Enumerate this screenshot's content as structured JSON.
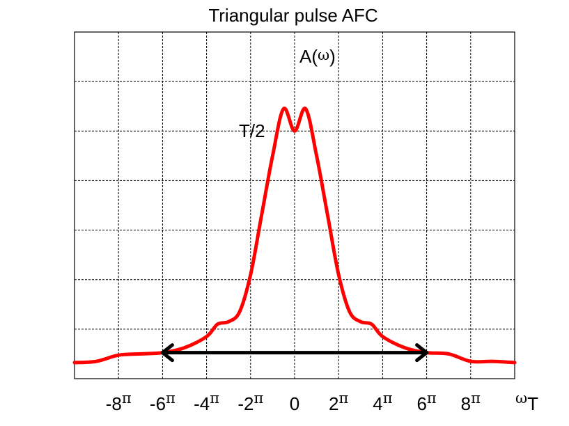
{
  "chart_data": {
    "type": "line",
    "title": "Triangular pulse AFC",
    "xlabel": {
      "symbol": "ω",
      "text": "T"
    },
    "ylabel": {
      "prefix": "A(",
      "symbol": "ω",
      "suffix": ")"
    },
    "peak_label": "T/2",
    "xlim": [
      -10,
      10
    ],
    "ylim": [
      0,
      1.4
    ],
    "grid": true,
    "x_ticks": [
      {
        "value": -8,
        "num": "-8",
        "sym": "π"
      },
      {
        "value": -6,
        "num": "-6",
        "sym": "π"
      },
      {
        "value": -4,
        "num": "-4",
        "sym": "π"
      },
      {
        "value": -2,
        "num": "-2",
        "sym": "π"
      },
      {
        "value": 0,
        "num": "0",
        "sym": ""
      },
      {
        "value": 2,
        "num": "2",
        "sym": "π"
      },
      {
        "value": 4,
        "num": "4",
        "sym": "π"
      },
      {
        "value": 6,
        "num": "6",
        "sym": "π"
      },
      {
        "value": 8,
        "num": "8",
        "sym": "π"
      }
    ],
    "series": [
      {
        "color": "#ff0000",
        "points": [
          [
            -10,
            0.065
          ],
          [
            -9,
            0.07
          ],
          [
            -8,
            0.095
          ],
          [
            -7,
            0.1
          ],
          [
            -6,
            0.105
          ],
          [
            -5,
            0.125
          ],
          [
            -4,
            0.17
          ],
          [
            -3.5,
            0.22
          ],
          [
            -3,
            0.23
          ],
          [
            -2.5,
            0.27
          ],
          [
            -2,
            0.42
          ],
          [
            -1.5,
            0.66
          ],
          [
            -1,
            0.9
          ],
          [
            -0.5,
            1.09
          ],
          [
            0,
            1.0
          ],
          [
            0.5,
            1.09
          ],
          [
            1,
            0.9
          ],
          [
            1.5,
            0.66
          ],
          [
            2,
            0.42
          ],
          [
            2.5,
            0.27
          ],
          [
            3,
            0.23
          ],
          [
            3.5,
            0.22
          ],
          [
            4,
            0.17
          ],
          [
            5,
            0.125
          ],
          [
            6,
            0.105
          ],
          [
            7,
            0.1
          ],
          [
            8,
            0.07
          ],
          [
            9,
            0.07
          ],
          [
            10,
            0.065
          ]
        ]
      }
    ],
    "annotations": [
      {
        "type": "double-arrow",
        "from": -6,
        "to": 6,
        "y": 0.105,
        "color": "#000000"
      }
    ]
  }
}
